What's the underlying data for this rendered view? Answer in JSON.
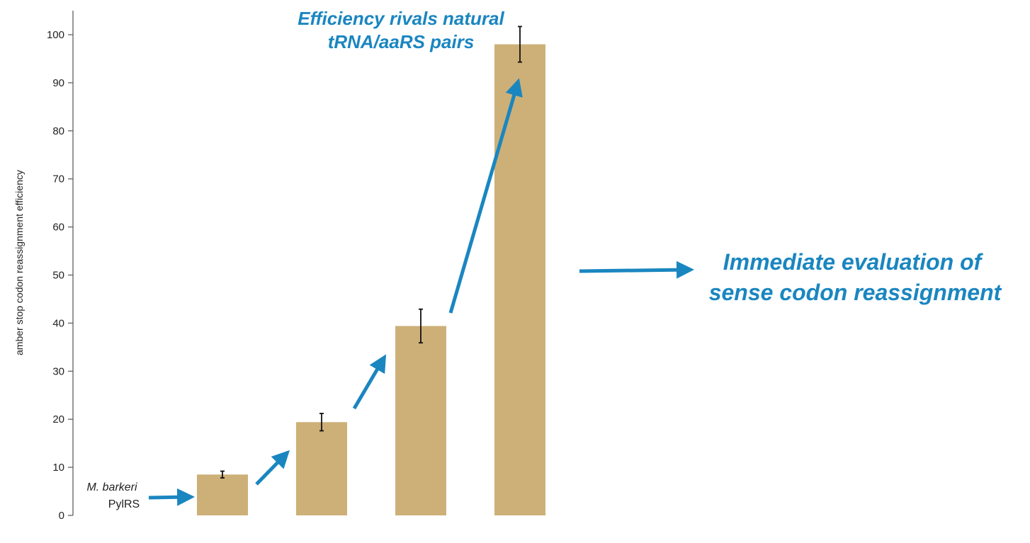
{
  "chart_data": {
    "type": "bar",
    "categories": [
      "",
      "",
      "",
      ""
    ],
    "values": [
      8.5,
      19.4,
      39.4,
      98.0
    ],
    "error": [
      0.7,
      1.8,
      3.5,
      3.7
    ],
    "ylabel": "amber stop codon reassignment  efficiency",
    "xlabel": "",
    "ylim": [
      0,
      100
    ],
    "yticks": [
      0,
      10,
      20,
      30,
      40,
      50,
      60,
      70,
      80,
      90,
      100
    ],
    "grid": false,
    "bar_color": "#cdb077",
    "axis_color": "#555555",
    "annotations": {
      "top": [
        "Efficiency rivals natural",
        "tRNA/aaRS pairs"
      ],
      "right": [
        "Immediate evaluation of",
        "sense codon reassignment"
      ],
      "start_species": "M. barkeri",
      "start_enzyme": "PylRS"
    },
    "accent_color": "#1a86c0"
  }
}
